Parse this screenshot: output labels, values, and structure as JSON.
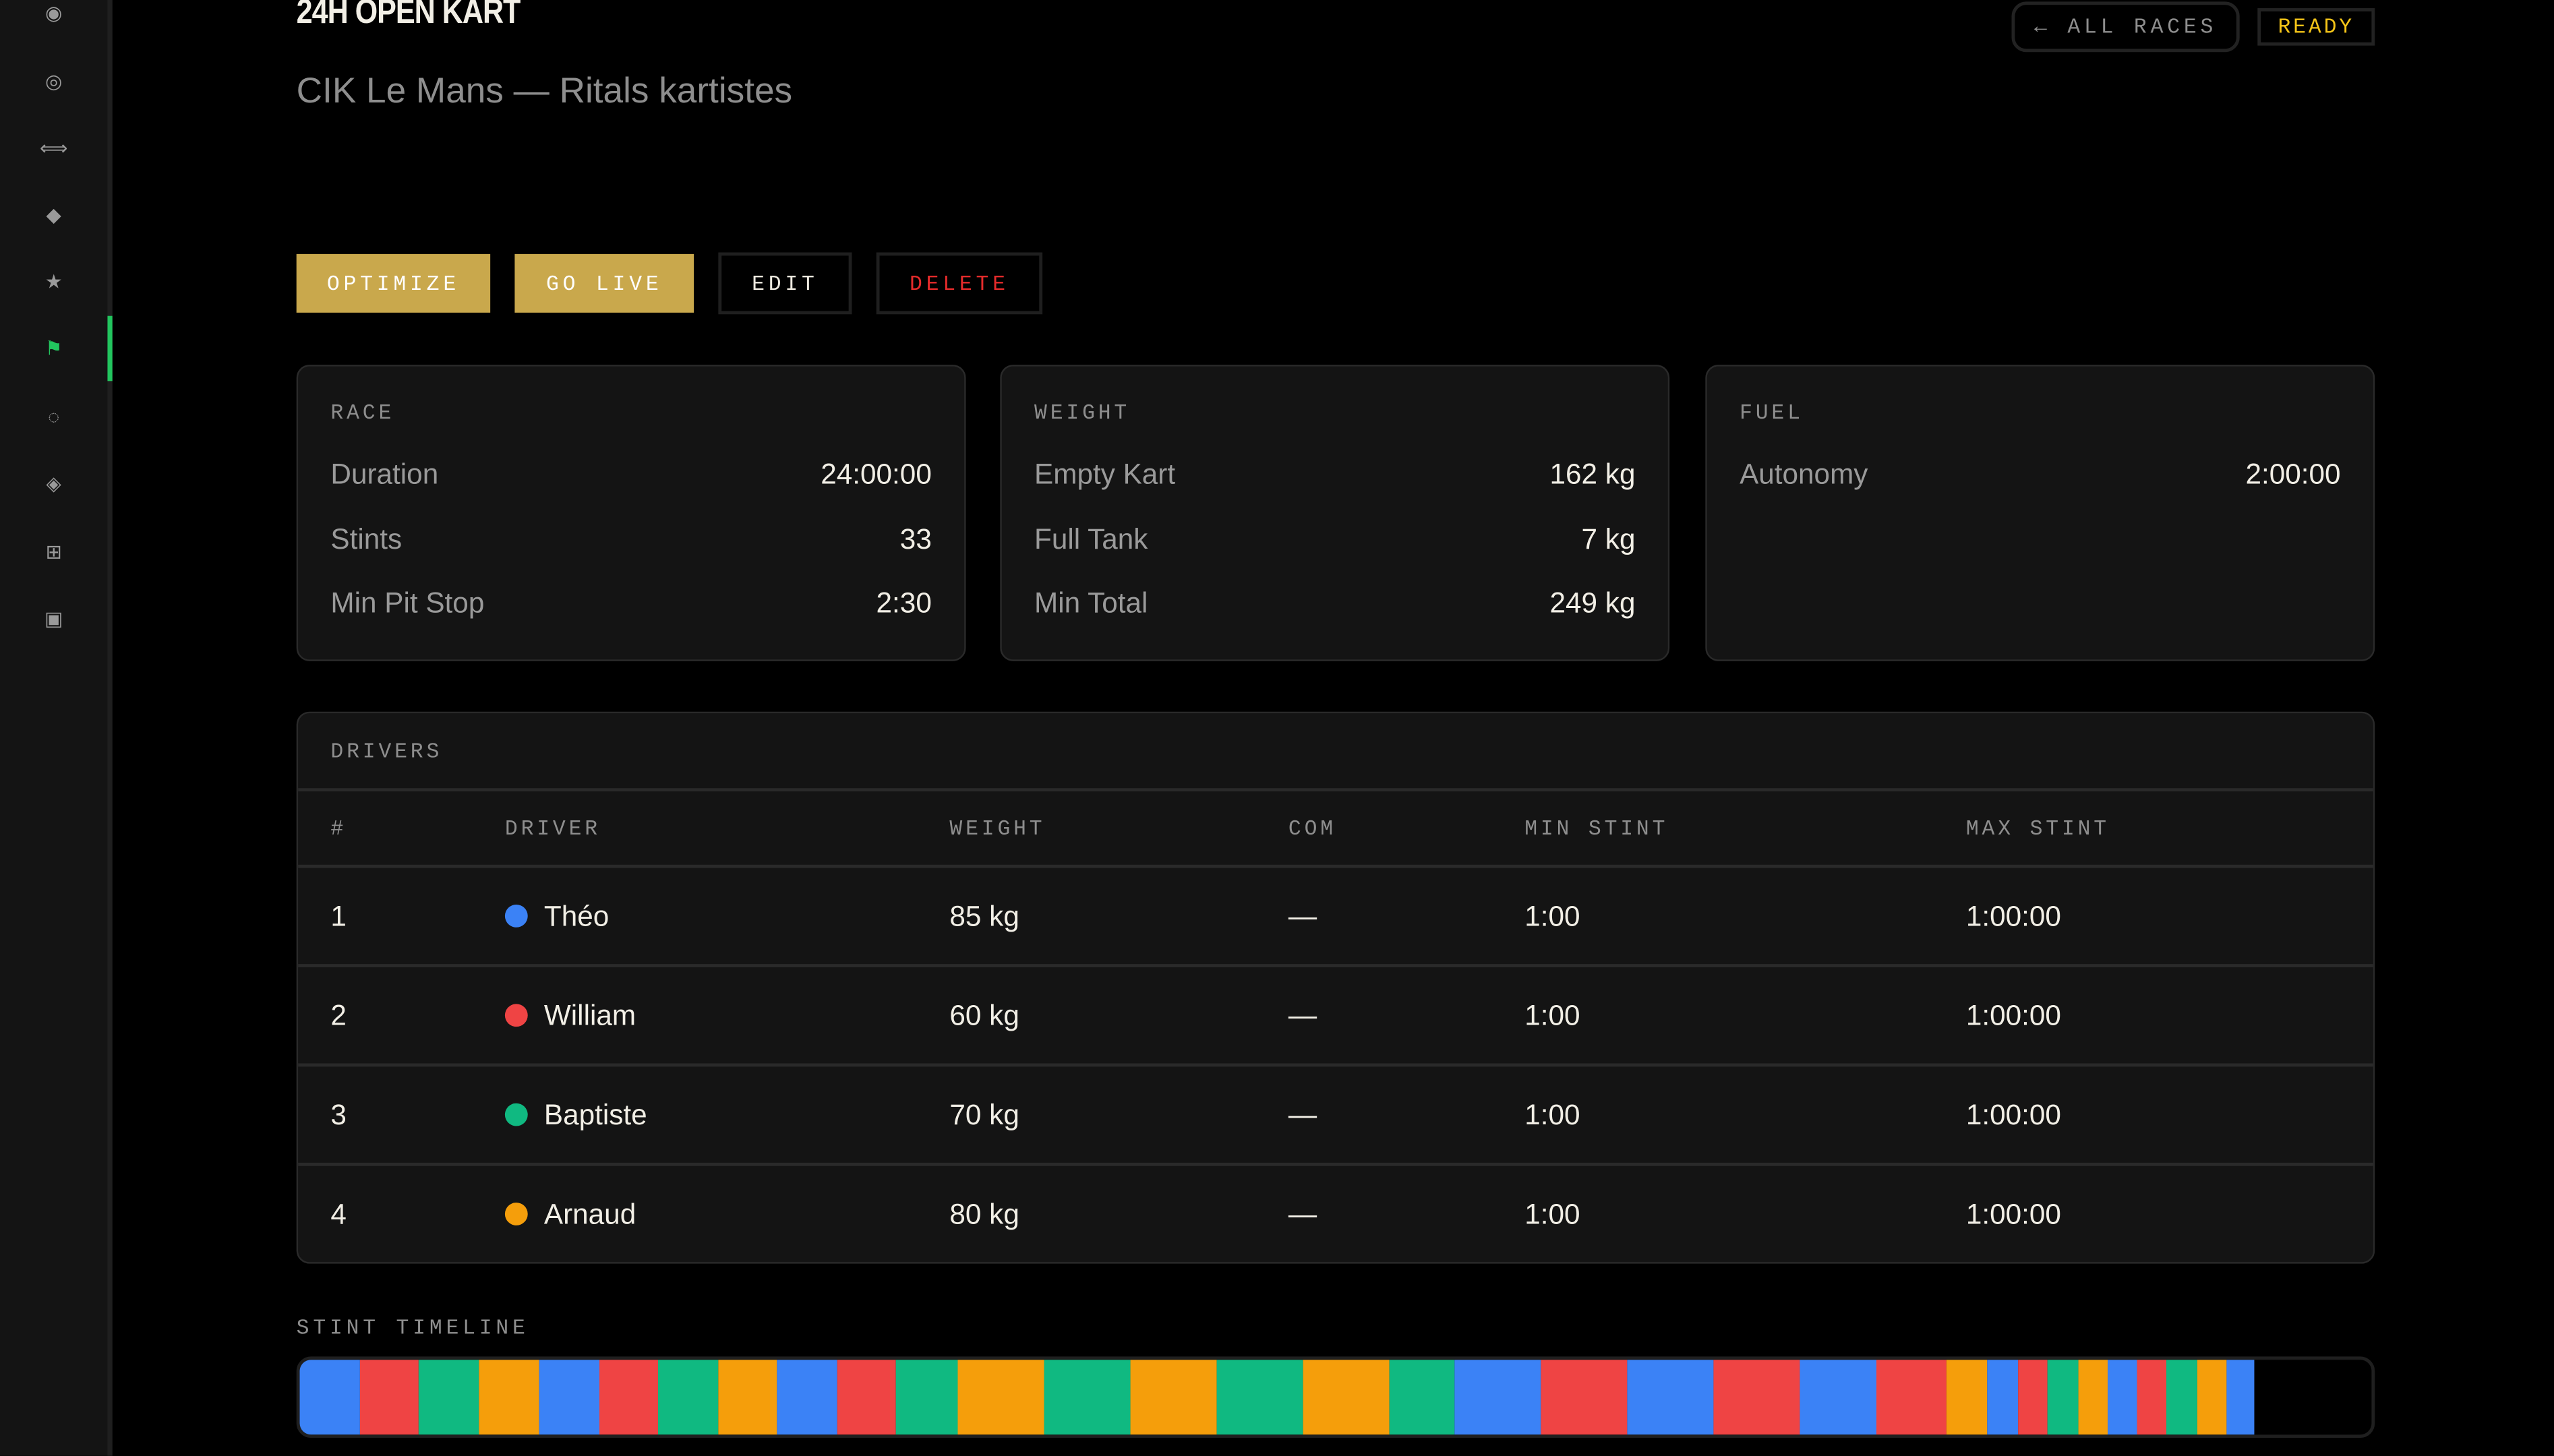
{
  "sidebar": {
    "items": [
      {
        "icon": "radio-filled-icon",
        "glyph": "◉"
      },
      {
        "icon": "target-icon",
        "glyph": "◎"
      },
      {
        "icon": "double-arrow-icon",
        "glyph": "⟺"
      },
      {
        "icon": "diamond-icon",
        "glyph": "◆"
      },
      {
        "icon": "star-icon",
        "glyph": "★"
      },
      {
        "icon": "flag-icon",
        "glyph": "⚑",
        "active": true
      },
      {
        "icon": "dotted-circle-icon",
        "glyph": "◌"
      },
      {
        "icon": "diamond-outline-icon",
        "glyph": "◈"
      },
      {
        "icon": "grid-icon",
        "glyph": "⊞"
      },
      {
        "icon": "square-inset-icon",
        "glyph": "▣"
      }
    ],
    "accent": "#22c55e"
  },
  "header": {
    "title": "24H OPEN KART",
    "subtitle": "CIK Le Mans — Ritals kartistes",
    "all_races": "← ALL RACES",
    "status": "READY",
    "status_color": "#f5c518"
  },
  "actions": {
    "optimize": "OPTIMIZE",
    "go_live": "GO LIVE",
    "edit": "EDIT",
    "delete": "DELETE",
    "gold": "#c9a84c"
  },
  "cards": {
    "race": {
      "label": "RACE",
      "rows": [
        {
          "k": "Duration",
          "v": "24:00:00"
        },
        {
          "k": "Stints",
          "v": "33"
        },
        {
          "k": "Min Pit Stop",
          "v": "2:30"
        }
      ]
    },
    "weight": {
      "label": "WEIGHT",
      "rows": [
        {
          "k": "Empty Kart",
          "v": "162 kg"
        },
        {
          "k": "Full Tank",
          "v": "7 kg"
        },
        {
          "k": "Min Total",
          "v": "249 kg"
        }
      ]
    },
    "fuel": {
      "label": "FUEL",
      "rows": [
        {
          "k": "Autonomy",
          "v": "2:00:00"
        }
      ]
    }
  },
  "drivers": {
    "label": "DRIVERS",
    "columns": [
      "#",
      "DRIVER",
      "WEIGHT",
      "COM",
      "MIN STINT",
      "MAX STINT"
    ],
    "rows": [
      {
        "num": "1",
        "name": "Théo",
        "color": "#3b82f6",
        "weight": "85 kg",
        "com": "—",
        "min": "1:00",
        "max": "1:00:00"
      },
      {
        "num": "2",
        "name": "William",
        "color": "#ef4444",
        "weight": "60 kg",
        "com": "—",
        "min": "1:00",
        "max": "1:00:00"
      },
      {
        "num": "3",
        "name": "Baptiste",
        "color": "#10b981",
        "weight": "70 kg",
        "com": "—",
        "min": "1:00",
        "max": "1:00:00"
      },
      {
        "num": "4",
        "name": "Arnaud",
        "color": "#f59e0b",
        "weight": "80 kg",
        "com": "—",
        "min": "1:00",
        "max": "1:00:00"
      }
    ]
  },
  "timeline": {
    "label": "STINT TIMELINE",
    "race_minutes": 1440,
    "stints": [
      {
        "driver": 1,
        "minutes": 42
      },
      {
        "driver": 2,
        "minutes": 41
      },
      {
        "driver": 3,
        "minutes": 41
      },
      {
        "driver": 4,
        "minutes": 42
      },
      {
        "driver": 1,
        "minutes": 42
      },
      {
        "driver": 2,
        "minutes": 41
      },
      {
        "driver": 3,
        "minutes": 42
      },
      {
        "driver": 4,
        "minutes": 41
      },
      {
        "driver": 1,
        "minutes": 42
      },
      {
        "driver": 2,
        "minutes": 41
      },
      {
        "driver": 3,
        "minutes": 42
      },
      {
        "driver": 4,
        "minutes": 60
      },
      {
        "driver": 3,
        "minutes": 60
      },
      {
        "driver": 4,
        "minutes": 60
      },
      {
        "driver": 3,
        "minutes": 60
      },
      {
        "driver": 4,
        "minutes": 60
      },
      {
        "driver": 3,
        "minutes": 46
      },
      {
        "driver": 1,
        "minutes": 60
      },
      {
        "driver": 2,
        "minutes": 60
      },
      {
        "driver": 1,
        "minutes": 60
      },
      {
        "driver": 2,
        "minutes": 60
      },
      {
        "driver": 1,
        "minutes": 53
      },
      {
        "driver": 2,
        "minutes": 49
      },
      {
        "driver": 4,
        "minutes": 28
      },
      {
        "driver": 1,
        "minutes": 21
      },
      {
        "driver": 2,
        "minutes": 21
      },
      {
        "driver": 3,
        "minutes": 21
      },
      {
        "driver": 4,
        "minutes": 21
      },
      {
        "driver": 1,
        "minutes": 20
      },
      {
        "driver": 2,
        "minutes": 21
      },
      {
        "driver": 3,
        "minutes": 21
      },
      {
        "driver": 4,
        "minutes": 20
      },
      {
        "driver": 1,
        "minutes": 20
      }
    ]
  }
}
